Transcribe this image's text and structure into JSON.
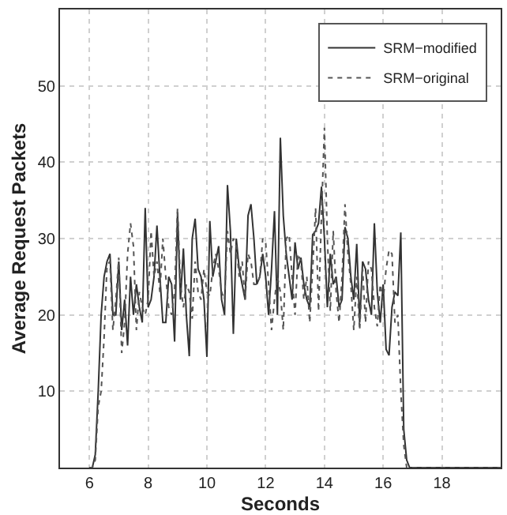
{
  "chart_data": {
    "type": "line",
    "xlabel": "Seconds",
    "ylabel": "Average Request Packets",
    "x": [
      6.0,
      6.1,
      6.2,
      6.3,
      6.4,
      6.5,
      6.6,
      6.7,
      6.8,
      6.9,
      7.0,
      7.1,
      7.2,
      7.3,
      7.4,
      7.5,
      7.6,
      7.7,
      7.8,
      7.9,
      8.0,
      8.1,
      8.2,
      8.3,
      8.4,
      8.5,
      8.6,
      8.7,
      8.8,
      8.9,
      9.0,
      9.1,
      9.2,
      9.3,
      9.4,
      9.5,
      9.6,
      9.7,
      9.8,
      9.9,
      10.0,
      10.1,
      10.2,
      10.3,
      10.4,
      10.5,
      10.6,
      10.7,
      10.8,
      10.9,
      11.0,
      11.1,
      11.2,
      11.3,
      11.4,
      11.5,
      11.6,
      11.7,
      11.8,
      11.9,
      12.0,
      12.1,
      12.2,
      12.3,
      12.4,
      12.5,
      12.6,
      12.7,
      12.8,
      12.9,
      13.0,
      13.1,
      13.2,
      13.3,
      13.4,
      13.5,
      13.6,
      13.7,
      13.8,
      13.9,
      14.0,
      14.1,
      14.2,
      14.3,
      14.4,
      14.5,
      14.6,
      14.7,
      14.8,
      14.9,
      15.0,
      15.1,
      15.2,
      15.3,
      15.4,
      15.5,
      15.6,
      15.7,
      15.8,
      15.9,
      16.0,
      16.1,
      16.2,
      16.3,
      16.4,
      16.5,
      16.6,
      16.7,
      16.8,
      16.9,
      20.0
    ],
    "series": [
      {
        "name": "SRM−modified",
        "color": "#333333",
        "line_style": "solid",
        "values": [
          0,
          0,
          1.7,
          10,
          20,
          25,
          27,
          28,
          20,
          20,
          27,
          18,
          22,
          16,
          25,
          20,
          24,
          21,
          19,
          34,
          21,
          22,
          25,
          31.7,
          25,
          19,
          19,
          25,
          24,
          16.5,
          33.4,
          22,
          28.7,
          20,
          14.6,
          30,
          32.6,
          26,
          25,
          22,
          14.5,
          32.3,
          25,
          27,
          29,
          22,
          20,
          37,
          31,
          17.5,
          30,
          26,
          24,
          22,
          33,
          34.5,
          30,
          24,
          25,
          28,
          25,
          20,
          26,
          33.6,
          20,
          43.2,
          33,
          28,
          25,
          22,
          29.5,
          26,
          27.5,
          24,
          22,
          21,
          30.5,
          31,
          32,
          36.8,
          30,
          21,
          28,
          24,
          25,
          21,
          22,
          31.5,
          30,
          25,
          22,
          29.3,
          19,
          27,
          26,
          22,
          20,
          32,
          23,
          19,
          24,
          15.5,
          14.7,
          21,
          23,
          22.5,
          30.8,
          5,
          1,
          0,
          0
        ]
      },
      {
        "name": "SRM−original",
        "color": "#555555",
        "line_style": "dotted",
        "values": [
          0,
          0,
          1,
          8,
          10,
          17,
          26.5,
          27,
          18,
          22,
          27.5,
          15,
          19,
          28,
          32,
          29,
          18,
          23,
          21,
          20,
          22,
          31,
          25,
          27,
          23,
          30,
          25,
          21,
          20,
          23,
          34,
          24,
          21,
          24,
          23,
          19.5,
          27,
          23,
          22,
          26,
          23,
          22.5,
          26,
          28,
          26,
          23,
          22,
          31,
          28,
          30,
          29,
          25,
          27,
          22,
          28,
          27,
          24,
          24,
          25,
          30,
          29.5,
          24,
          18,
          22,
          25,
          23,
          18,
          30,
          30.5,
          25,
          20,
          28,
          27,
          22,
          25,
          19,
          26,
          34,
          20.5,
          33,
          44.5,
          30,
          20.5,
          31,
          23,
          19,
          25,
          34.5,
          28,
          24,
          18,
          25,
          18,
          26,
          19,
          27,
          26,
          21,
          18.5,
          24,
          22,
          26,
          28.5,
          28,
          19,
          20,
          10,
          3,
          0,
          0,
          0
        ]
      }
    ],
    "xlim": [
      5,
      20
    ],
    "xticks": [
      6,
      8,
      10,
      12,
      14,
      16,
      18
    ],
    "ylim": [
      0,
      60
    ],
    "yticks": [
      10,
      20,
      30,
      40,
      50
    ],
    "grid": true,
    "legend": "top right",
    "marker": "none"
  }
}
